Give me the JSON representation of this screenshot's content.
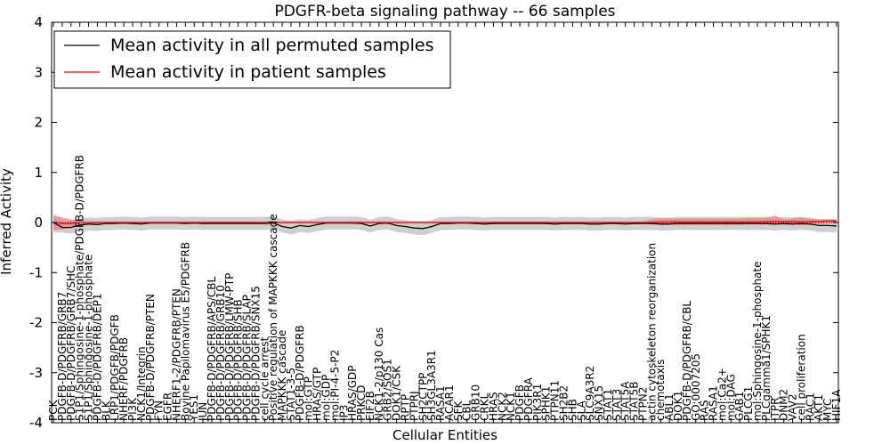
{
  "chart_data": {
    "type": "line",
    "title": "PDGFR-beta signaling pathway -- 66 samples",
    "xlabel": "Cellular Entities",
    "ylabel": "Inferred Activity",
    "ylim": [
      -4,
      4
    ],
    "yticks": [
      -4,
      -3,
      -2,
      -1,
      0,
      1,
      2,
      3,
      4
    ],
    "legend_position": "top-left",
    "colors": {
      "permuted_line": "#000000",
      "permuted_band": "#bfbfbf",
      "patient_line": "#ff0000",
      "patient_band": "#f08080"
    },
    "categories": [
      "PCK",
      "PDGFB-D/PDGFRB/GRB7",
      "PDGFB-D/PDGFRB/GRB7/SHC",
      "S1P1/Sphingosine-1-phosphate/PDGFB-D/PDGFRB",
      "S1P1/Sphingosine-1-phosphate",
      "PDGFB-D/PDGFRB/DEP1",
      "BLK",
      "LRP1/PDGFB/PDGFB",
      "NHERF/PDGFRB",
      "Pl3K",
      "NCK1/Integrin",
      "PDGFB-D/PDGFRB/PTEN",
      "FYN",
      "EGFR",
      "NHERF1-2/PDGFRB/PTEN",
      "Bovine Papilomavirus E5/PDGFRB",
      "YES1",
      "JUN",
      "PDGFB-D/PDGFRB/APS/CBL",
      "PDGFB-D/PDGFRB/GRB10",
      "PDGFB-D/PDGFRB/LMW-PTP",
      "PDGFB-D/PDGFRB/SHB",
      "PDGFB-D/PDGFRB/SLAP",
      "PDGFB-D/PDGFRB/SNX15",
      "cell cycle arrest",
      "Positive regulation of MAPKKK cascade",
      "MAPKKK cascade",
      "STAT1-3-5",
      "PDGFB-D/PDGFRB",
      "mol:GTP",
      "HRAS/GTP",
      "mol:GDP",
      "mol:PI-4-5-P2",
      "IP3",
      "HRAS/GDP",
      "PRKCD",
      "EIF2B",
      "NCK1-2/p130 Cas",
      "GRB2/SOS1",
      "DOK1/CSK",
      "RPTP",
      "PTPRJ",
      "SH2CTPP",
      "SH3GL3A3R1",
      "RASA1",
      "ACAR1",
      "SFK",
      "CBL",
      "GRB10",
      "CRKL",
      "HRAS",
      "NCK2",
      "NCK1",
      "PDGFB",
      "PDGFRA",
      "PIK3R1",
      "SPHK1",
      "PTPN11",
      "SH2B2",
      "SHB",
      "SLA",
      "SLC9A3R2",
      "SNX15",
      "STAT1",
      "STAT3",
      "STAT5A",
      "STAT5B",
      "PTPN2",
      "actin cytoskeleton reorganization",
      "chemotaxis",
      "ABL1",
      "DOK1",
      "PDGFB-D/PDGFRB/CBL",
      "GO:0007205",
      "RAS",
      "RASA1",
      "mol:Ca2+",
      "mol:DAG",
      "GAB1",
      "PLCG1",
      "mol:Sphingosine-1-phosphate",
      "PLCgamma1/SPHK1",
      "ITPR",
      "DNM2",
      "VAV2",
      "cell proliferation",
      "RAC1",
      "AKT1",
      "MYC",
      "HIF1A"
    ],
    "series": [
      {
        "name": "Mean activity in all permuted samples",
        "mean": [
          0.0,
          -0.1,
          -0.1,
          -0.05,
          -0.03,
          -0.04,
          -0.02,
          -0.02,
          -0.01,
          -0.02,
          -0.03,
          -0.01,
          -0.01,
          -0.01,
          -0.01,
          -0.02,
          -0.01,
          -0.02,
          -0.02,
          -0.02,
          -0.02,
          -0.02,
          -0.02,
          -0.02,
          -0.02,
          -0.01,
          -0.08,
          -0.11,
          -0.06,
          -0.08,
          -0.04,
          -0.01,
          -0.01,
          -0.01,
          -0.01,
          -0.02,
          -0.07,
          -0.02,
          -0.01,
          -0.06,
          -0.08,
          -0.11,
          -0.12,
          -0.08,
          -0.02,
          -0.02,
          -0.01,
          -0.01,
          -0.02,
          -0.03,
          -0.02,
          -0.02,
          -0.02,
          -0.02,
          -0.02,
          -0.02,
          -0.02,
          -0.03,
          -0.02,
          -0.02,
          -0.02,
          -0.03,
          -0.03,
          -0.02,
          -0.02,
          -0.03,
          -0.02,
          -0.02,
          -0.02,
          -0.03,
          -0.03,
          -0.02,
          -0.02,
          -0.02,
          -0.02,
          -0.02,
          -0.02,
          -0.02,
          -0.02,
          -0.02,
          -0.02,
          -0.02,
          -0.03,
          -0.02,
          -0.03,
          -0.02,
          -0.03,
          -0.06,
          -0.06,
          -0.07
        ],
        "lower": [
          -0.2,
          -0.2,
          -0.22,
          -0.18,
          -0.16,
          -0.17,
          -0.15,
          -0.15,
          -0.14,
          -0.15,
          -0.16,
          -0.14,
          -0.14,
          -0.14,
          -0.14,
          -0.15,
          -0.14,
          -0.15,
          -0.15,
          -0.15,
          -0.15,
          -0.15,
          -0.15,
          -0.15,
          -0.15,
          -0.14,
          -0.2,
          -0.24,
          -0.19,
          -0.21,
          -0.17,
          -0.14,
          -0.14,
          -0.14,
          -0.14,
          -0.15,
          -0.2,
          -0.15,
          -0.14,
          -0.19,
          -0.21,
          -0.24,
          -0.25,
          -0.21,
          -0.15,
          -0.15,
          -0.14,
          -0.14,
          -0.15,
          -0.16,
          -0.15,
          -0.15,
          -0.15,
          -0.15,
          -0.15,
          -0.15,
          -0.15,
          -0.16,
          -0.15,
          -0.15,
          -0.15,
          -0.16,
          -0.16,
          -0.15,
          -0.15,
          -0.16,
          -0.15,
          -0.15,
          -0.15,
          -0.16,
          -0.16,
          -0.15,
          -0.15,
          -0.15,
          -0.15,
          -0.15,
          -0.15,
          -0.15,
          -0.15,
          -0.15,
          -0.15,
          -0.15,
          -0.16,
          -0.15,
          -0.16,
          -0.15,
          -0.16,
          -0.19,
          -0.19,
          -0.2
        ],
        "upper": [
          0.12,
          0.05,
          0.04,
          0.08,
          0.1,
          0.09,
          0.11,
          0.11,
          0.12,
          0.11,
          0.1,
          0.12,
          0.12,
          0.12,
          0.12,
          0.11,
          0.12,
          0.11,
          0.11,
          0.11,
          0.11,
          0.11,
          0.11,
          0.11,
          0.11,
          0.12,
          0.06,
          0.03,
          0.07,
          0.05,
          0.09,
          0.12,
          0.12,
          0.12,
          0.12,
          0.11,
          0.06,
          0.11,
          0.12,
          0.07,
          0.05,
          0.02,
          0.01,
          0.05,
          0.11,
          0.11,
          0.12,
          0.12,
          0.11,
          0.1,
          0.11,
          0.11,
          0.11,
          0.11,
          0.11,
          0.11,
          0.11,
          0.1,
          0.11,
          0.11,
          0.11,
          0.1,
          0.1,
          0.11,
          0.11,
          0.1,
          0.11,
          0.11,
          0.11,
          0.1,
          0.1,
          0.11,
          0.11,
          0.11,
          0.11,
          0.11,
          0.11,
          0.11,
          0.11,
          0.11,
          0.11,
          0.11,
          0.1,
          0.11,
          0.1,
          0.11,
          0.1,
          0.07,
          0.07,
          0.06
        ]
      },
      {
        "name": "Mean activity in patient samples",
        "mean": [
          0.0,
          -0.02,
          -0.02,
          0.0,
          0.0,
          0.0,
          0.0,
          0.0,
          0.0,
          0.0,
          0.0,
          0.0,
          0.0,
          0.0,
          0.0,
          0.0,
          0.0,
          0.0,
          0.0,
          0.0,
          0.0,
          0.0,
          0.0,
          0.0,
          0.0,
          0.0,
          0.0,
          0.0,
          0.0,
          0.0,
          0.0,
          0.0,
          0.0,
          0.0,
          0.0,
          0.0,
          0.0,
          0.0,
          0.0,
          0.0,
          0.0,
          0.0,
          0.0,
          0.0,
          0.0,
          0.0,
          0.0,
          0.0,
          0.0,
          0.0,
          0.0,
          0.0,
          0.0,
          0.0,
          0.0,
          0.0,
          0.0,
          0.0,
          0.0,
          0.0,
          0.0,
          0.0,
          0.0,
          0.0,
          0.0,
          0.0,
          0.0,
          0.0,
          0.0,
          0.01,
          0.01,
          0.01,
          0.01,
          0.01,
          0.01,
          0.01,
          0.01,
          0.01,
          0.01,
          0.01,
          0.01,
          0.02,
          0.02,
          0.02,
          0.02,
          0.01,
          0.02,
          0.02,
          0.03,
          0.03
        ],
        "lower": [
          -0.15,
          -0.14,
          -0.1,
          -0.03,
          -0.02,
          -0.02,
          -0.02,
          -0.02,
          -0.02,
          -0.02,
          -0.02,
          -0.02,
          -0.02,
          -0.02,
          -0.02,
          -0.02,
          -0.02,
          -0.02,
          -0.02,
          -0.02,
          -0.02,
          -0.02,
          -0.02,
          -0.02,
          -0.02,
          -0.02,
          -0.02,
          -0.02,
          -0.02,
          -0.02,
          -0.02,
          -0.02,
          -0.02,
          -0.02,
          -0.02,
          -0.02,
          -0.02,
          -0.02,
          -0.02,
          -0.02,
          -0.02,
          -0.02,
          -0.02,
          -0.02,
          -0.02,
          -0.02,
          -0.02,
          -0.02,
          -0.02,
          -0.02,
          -0.02,
          -0.02,
          -0.02,
          -0.02,
          -0.02,
          -0.02,
          -0.02,
          -0.02,
          -0.02,
          -0.02,
          -0.02,
          -0.02,
          -0.02,
          -0.02,
          -0.02,
          -0.02,
          -0.02,
          -0.02,
          -0.04,
          -0.05,
          -0.05,
          -0.05,
          -0.05,
          -0.05,
          -0.05,
          -0.05,
          -0.05,
          -0.05,
          -0.05,
          -0.04,
          -0.04,
          -0.04,
          -0.04,
          -0.05,
          -0.04,
          -0.06,
          -0.04,
          -0.03,
          -0.02,
          -0.02
        ],
        "upper": [
          0.15,
          0.1,
          0.06,
          0.03,
          0.02,
          0.02,
          0.02,
          0.02,
          0.02,
          0.02,
          0.02,
          0.02,
          0.02,
          0.02,
          0.02,
          0.02,
          0.02,
          0.02,
          0.02,
          0.02,
          0.02,
          0.02,
          0.02,
          0.02,
          0.02,
          0.02,
          0.02,
          0.02,
          0.02,
          0.02,
          0.02,
          0.02,
          0.02,
          0.02,
          0.02,
          0.02,
          0.02,
          0.02,
          0.02,
          0.02,
          0.02,
          0.02,
          0.02,
          0.02,
          0.02,
          0.02,
          0.02,
          0.02,
          0.02,
          0.02,
          0.02,
          0.02,
          0.02,
          0.02,
          0.02,
          0.02,
          0.02,
          0.02,
          0.02,
          0.02,
          0.02,
          0.02,
          0.02,
          0.02,
          0.02,
          0.02,
          0.02,
          0.02,
          0.07,
          0.08,
          0.08,
          0.08,
          0.08,
          0.08,
          0.08,
          0.08,
          0.08,
          0.08,
          0.08,
          0.09,
          0.09,
          0.09,
          0.14,
          0.06,
          0.08,
          0.1,
          0.07,
          0.06,
          0.06,
          0.06
        ]
      }
    ]
  }
}
